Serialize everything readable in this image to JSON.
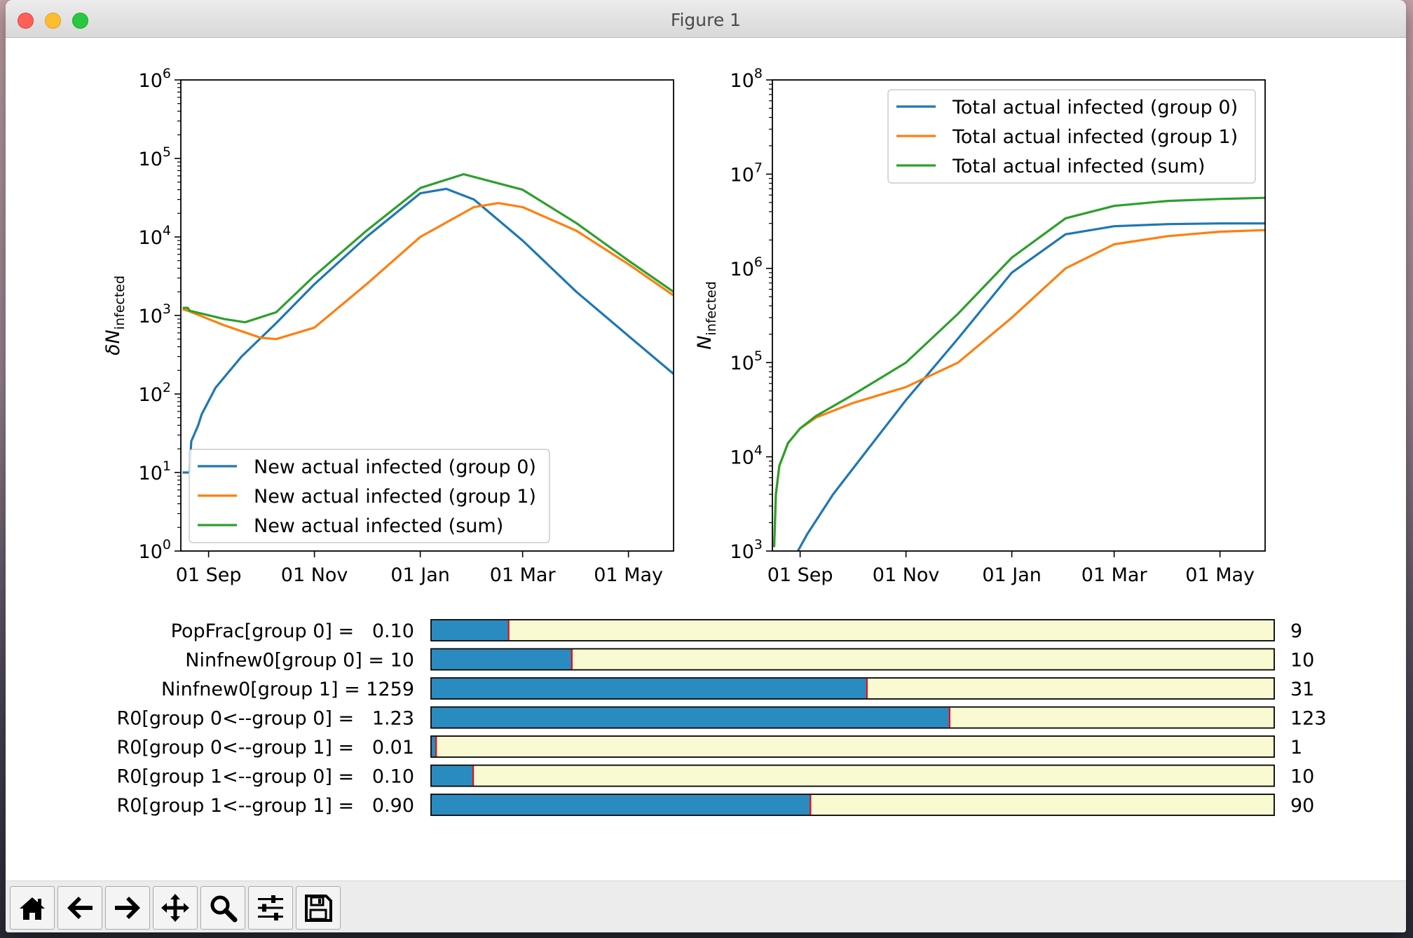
{
  "window": {
    "title": "Figure 1"
  },
  "toolbar": {
    "buttons": [
      {
        "name": "home-button",
        "icon": "home-icon"
      },
      {
        "name": "back-button",
        "icon": "arrow-left-icon"
      },
      {
        "name": "forward-button",
        "icon": "arrow-right-icon"
      },
      {
        "name": "pan-button",
        "icon": "move-icon"
      },
      {
        "name": "zoom-button",
        "icon": "search-icon"
      },
      {
        "name": "configure-subplots-button",
        "icon": "sliders-icon"
      },
      {
        "name": "save-button",
        "icon": "save-icon"
      }
    ]
  },
  "chart_data": [
    {
      "type": "line",
      "ylabel": "δN_infected",
      "ylabel_main": "δN",
      "ylabel_sub": "infected",
      "yscale": "log",
      "ylim_exp": [
        0,
        6
      ],
      "yticks": [
        "10^0",
        "10^1",
        "10^2",
        "10^3",
        "10^4",
        "10^5",
        "10^6"
      ],
      "xaxis": "date",
      "xlim": [
        "2020-08-16",
        "2021-05-27"
      ],
      "xticks": [
        "01 Sep",
        "01 Nov",
        "01 Jan",
        "01 Mar",
        "01 May"
      ],
      "xtick_dates": [
        "2020-09-01",
        "2020-11-01",
        "2021-01-01",
        "2021-03-01",
        "2021-05-01"
      ],
      "legend_loc": "lower left",
      "grid": false,
      "series": [
        {
          "name": "New actual infected (group 0)",
          "color": "#1f77b4",
          "x": [
            "2020-08-17",
            "2020-08-21",
            "2020-08-22",
            "2020-08-26",
            "2020-08-28",
            "2020-09-05",
            "2020-09-20",
            "2020-10-10",
            "2020-11-01",
            "2020-12-01",
            "2021-01-01",
            "2021-01-16",
            "2021-02-01",
            "2021-03-01",
            "2021-04-01",
            "2021-05-01",
            "2021-05-27"
          ],
          "y": [
            10,
            10,
            25,
            40,
            55,
            120,
            300,
            800,
            2500,
            10000,
            36000,
            41000,
            30000,
            9000,
            2000,
            550,
            180
          ]
        },
        {
          "name": "New actual infected (group 1)",
          "color": "#ff7f0e",
          "x": [
            "2020-08-17",
            "2020-08-20",
            "2020-09-10",
            "2020-10-01",
            "2020-10-10",
            "2020-11-01",
            "2020-12-01",
            "2021-01-01",
            "2021-02-01",
            "2021-02-15",
            "2021-03-01",
            "2021-04-01",
            "2021-05-01",
            "2021-05-27"
          ],
          "y": [
            1200,
            1150,
            750,
            520,
            500,
            700,
            2500,
            10000,
            24000,
            27000,
            24000,
            12000,
            4500,
            1800
          ]
        },
        {
          "name": "New actual infected (sum)",
          "color": "#2ca02c",
          "x": [
            "2020-08-17",
            "2020-08-20",
            "2020-08-21",
            "2020-09-10",
            "2020-09-22",
            "2020-10-10",
            "2020-11-01",
            "2020-12-01",
            "2021-01-01",
            "2021-01-26",
            "2021-03-01",
            "2021-04-01",
            "2021-05-01",
            "2021-05-27"
          ],
          "y": [
            1250,
            1250,
            1150,
            900,
            820,
            1100,
            3200,
            12000,
            42000,
            63000,
            40000,
            15000,
            5000,
            2000
          ]
        }
      ]
    },
    {
      "type": "line",
      "ylabel": "N_infected",
      "ylabel_main": "N",
      "ylabel_sub": "infected",
      "yscale": "log",
      "ylim_exp": [
        3,
        8
      ],
      "yticks": [
        "10^3",
        "10^4",
        "10^5",
        "10^6",
        "10^7",
        "10^8"
      ],
      "xaxis": "date",
      "xlim": [
        "2020-08-16",
        "2021-05-27"
      ],
      "xticks": [
        "01 Sep",
        "01 Nov",
        "01 Jan",
        "01 Mar",
        "01 May"
      ],
      "xtick_dates": [
        "2020-09-01",
        "2020-11-01",
        "2021-01-01",
        "2021-03-01",
        "2021-05-01"
      ],
      "legend_loc": "upper right",
      "grid": false,
      "series": [
        {
          "name": "Total actual infected (group 0)",
          "color": "#1f77b4",
          "x": [
            "2020-08-30",
            "2020-09-05",
            "2020-09-20",
            "2020-10-10",
            "2020-11-01",
            "2020-12-01",
            "2021-01-01",
            "2021-02-01",
            "2021-03-01",
            "2021-04-01",
            "2021-05-01",
            "2021-05-27"
          ],
          "y": [
            950,
            1500,
            4000,
            12000,
            40000,
            180000,
            900000,
            2300000,
            2800000,
            2950000,
            3000000,
            3000000
          ]
        },
        {
          "name": "Total actual infected (group 1)",
          "color": "#ff7f0e",
          "x": [
            "2020-08-17",
            "2020-08-18",
            "2020-08-20",
            "2020-08-25",
            "2020-09-01",
            "2020-09-10",
            "2020-10-01",
            "2020-11-01",
            "2020-12-01",
            "2021-01-01",
            "2021-02-01",
            "2021-03-01",
            "2021-04-01",
            "2021-05-01",
            "2021-05-27"
          ],
          "y": [
            1100,
            4000,
            8000,
            14000,
            20000,
            26000,
            37000,
            55000,
            100000,
            300000,
            1000000,
            1800000,
            2200000,
            2450000,
            2550000
          ]
        },
        {
          "name": "Total actual infected (sum)",
          "color": "#2ca02c",
          "x": [
            "2020-08-17",
            "2020-08-18",
            "2020-08-20",
            "2020-08-25",
            "2020-09-01",
            "2020-09-10",
            "2020-10-01",
            "2020-11-01",
            "2020-12-01",
            "2021-01-01",
            "2021-02-01",
            "2021-03-01",
            "2021-04-01",
            "2021-05-01",
            "2021-05-27"
          ],
          "y": [
            1100,
            4000,
            8000,
            14000,
            20000,
            27000,
            45000,
            100000,
            330000,
            1300000,
            3400000,
            4600000,
            5200000,
            5450000,
            5600000
          ]
        }
      ]
    }
  ],
  "sliders": [
    {
      "label": "PopFrac[group 0] =   0.10",
      "value_text": "9",
      "fraction": 0.092
    },
    {
      "label": "Ninfnew0[group 0] = 10",
      "value_text": "10",
      "fraction": 0.167
    },
    {
      "label": "Ninfnew0[group 1] = 1259",
      "value_text": "31",
      "fraction": 0.517
    },
    {
      "label": "R0[group 0<--group 0] =   1.23",
      "value_text": "123",
      "fraction": 0.615
    },
    {
      "label": "R0[group 0<--group 1] =   0.01",
      "value_text": "1",
      "fraction": 0.006
    },
    {
      "label": "R0[group 1<--group 0] =   0.10",
      "value_text": "10",
      "fraction": 0.05
    },
    {
      "label": "R0[group 1<--group 1] =   0.90",
      "value_text": "90",
      "fraction": 0.45
    }
  ],
  "colors": {
    "slider_fill": "#2a8bc0",
    "slider_track": "#fafad2",
    "slider_marker": "#ff0000"
  }
}
